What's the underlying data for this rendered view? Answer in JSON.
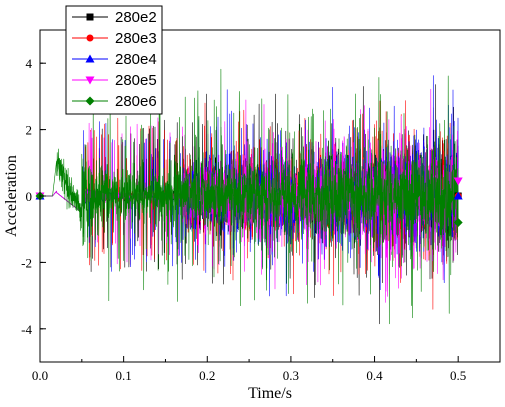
{
  "chart_data": {
    "type": "line",
    "xlabel": "Time/s",
    "ylabel": "Acceleration",
    "xlim": [
      0.0,
      0.55
    ],
    "ylim": [
      -5,
      5
    ],
    "xticks": [
      0.0,
      0.1,
      0.2,
      0.3,
      0.4,
      0.5
    ],
    "xtick_labels": [
      "0.0",
      "0.1",
      "0.2",
      "0.3",
      "0.4",
      "0.5"
    ],
    "yticks": [
      -4,
      -2,
      0,
      2,
      4
    ],
    "ytick_labels": [
      "-4",
      "-2",
      "0",
      "2",
      "4"
    ],
    "grid": false,
    "legend_position": "top-left",
    "series": [
      {
        "name": "280e2",
        "color": "#000000",
        "marker": "square",
        "start": 0.0,
        "end": 0.5,
        "end_value": 0.0
      },
      {
        "name": "280e3",
        "color": "#ff0000",
        "marker": "circle",
        "start": 0.0,
        "end": 0.5,
        "end_value": 0.0
      },
      {
        "name": "280e4",
        "color": "#0000ff",
        "marker": "triangle-up",
        "start": 0.0,
        "end": 0.5,
        "end_value": 0.0
      },
      {
        "name": "280e5",
        "color": "#ff00ff",
        "marker": "triangle-down",
        "start": 0.0,
        "end": 0.5,
        "end_value": 0.45
      },
      {
        "name": "280e6",
        "color": "#008000",
        "marker": "diamond",
        "start": 0.0,
        "end": 0.5,
        "end_value": -0.8
      }
    ]
  }
}
